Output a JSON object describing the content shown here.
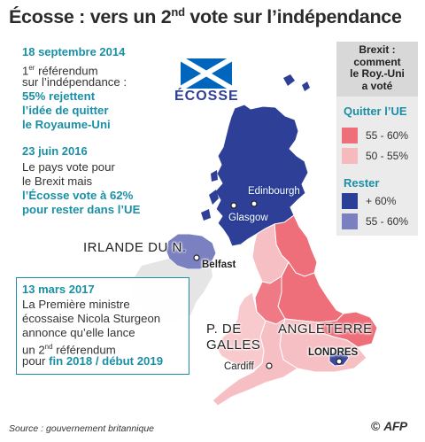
{
  "title": {
    "main": "Écosse : vers un 2",
    "sup": "nd",
    "rest": " vote sur l’indépendance"
  },
  "timeline": {
    "e1": {
      "date": "18 septembre 2014",
      "l1_sup": "er",
      "l1_a": "1",
      "l1_b": " référendum",
      "l2": "sur l’indépendance :",
      "hl1": "55% rejettent",
      "hl2": "l’idée de quitter",
      "hl3": "le Royaume-Uni"
    },
    "e2": {
      "date": "23 juin 2016",
      "l1": "Le pays vote pour",
      "l2": "le Brexit mais",
      "hl1": "l’Écosse vote à 62%",
      "hl2": "pour rester dans l’UE"
    },
    "e3": {
      "date": "13 mars 2017",
      "l1": "La Première ministre",
      "l2": "écossaise Nicola Sturgeon",
      "l3": "annonce qu’elle lance",
      "l4_a": "un 2",
      "l4_sup": "nd",
      "l4_b": " référendum",
      "l5_a": "pour ",
      "l5_hl": "fin 2018 / début 2019"
    }
  },
  "legend": {
    "header": [
      "Brexit :",
      "comment",
      "le Roy.-Uni",
      "a voté"
    ],
    "leave_title": "Quitter l’UE",
    "remain_title": "Rester",
    "items": [
      {
        "label": "55 - 60%",
        "color": "#ee6e7a"
      },
      {
        "label": "50 - 55%",
        "color": "#f5b9be"
      },
      {
        "label": "+ 60%",
        "color": "#2b3f98"
      },
      {
        "label": "55 - 60%",
        "color": "#7a80c0"
      }
    ]
  },
  "map": {
    "flag_label": "ÉCOSSE",
    "regions": {
      "ireland": "IRLANDE DU N.",
      "wales_1": "P. DE",
      "wales_2": "GALLES",
      "england": "ANGLETERRE"
    },
    "cities": {
      "edinburgh": "Edinbourgh",
      "glasgow": "Glasgow",
      "belfast": "Belfast",
      "cardiff": "Cardiff",
      "london": "LONDRES"
    },
    "colors": {
      "scotland": "#2e3f97",
      "northern_ireland": "#7b80c1",
      "england_leave_strong": "#ee6e7a",
      "england_leave_light": "#f6bfc4",
      "wales": "#f8c9cd",
      "london": "#3b4aa0"
    }
  },
  "source": "Source : gouvernement britannique",
  "credit": {
    "copyright": "©",
    "logo": "AFP"
  }
}
